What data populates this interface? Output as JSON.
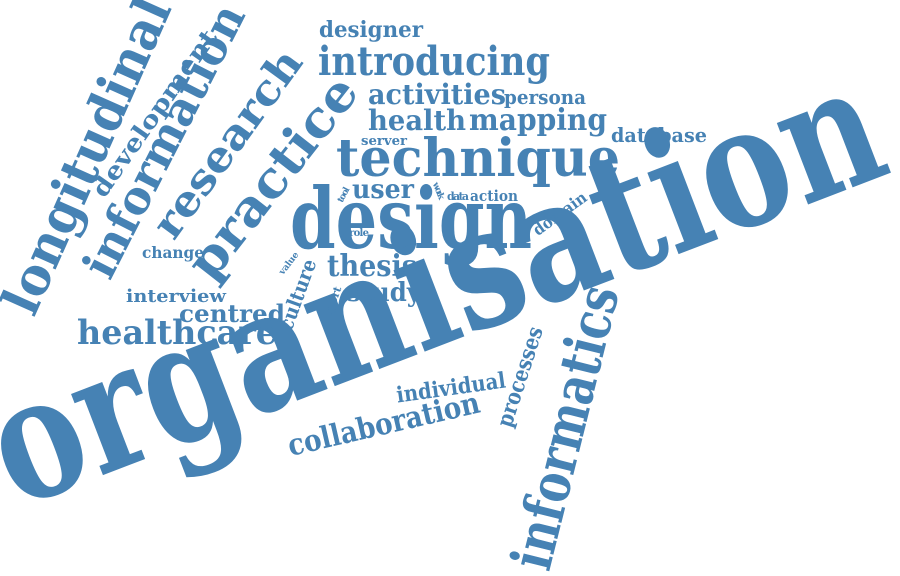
{
  "cloud": {
    "text_color": "#4682b4",
    "background": "#ffffff",
    "words": {
      "organisation": "organisation",
      "design": "design",
      "technique": "technique",
      "informatics": "informatics",
      "longitudinal": "longitudinal",
      "information": "information",
      "research": "research",
      "practice": "practice",
      "introducing": "introducing",
      "healthcare": "healthcare",
      "collaboration": "collaboration",
      "development": "development",
      "activities": "activities",
      "mapping": "mapping",
      "health": "health",
      "designer": "designer",
      "persona": "persona",
      "database": "database",
      "user": "user",
      "server": "server",
      "thesis": "thesis",
      "study": "study",
      "centred": "centred",
      "interview": "interview",
      "change": "change",
      "culture": "culture",
      "individual": "individual",
      "processes": "processes",
      "domain": "domain",
      "action": "action",
      "data": "data",
      "work": "work",
      "tool": "tool",
      "role": "role",
      "value": "value",
      "report": "report"
    }
  }
}
